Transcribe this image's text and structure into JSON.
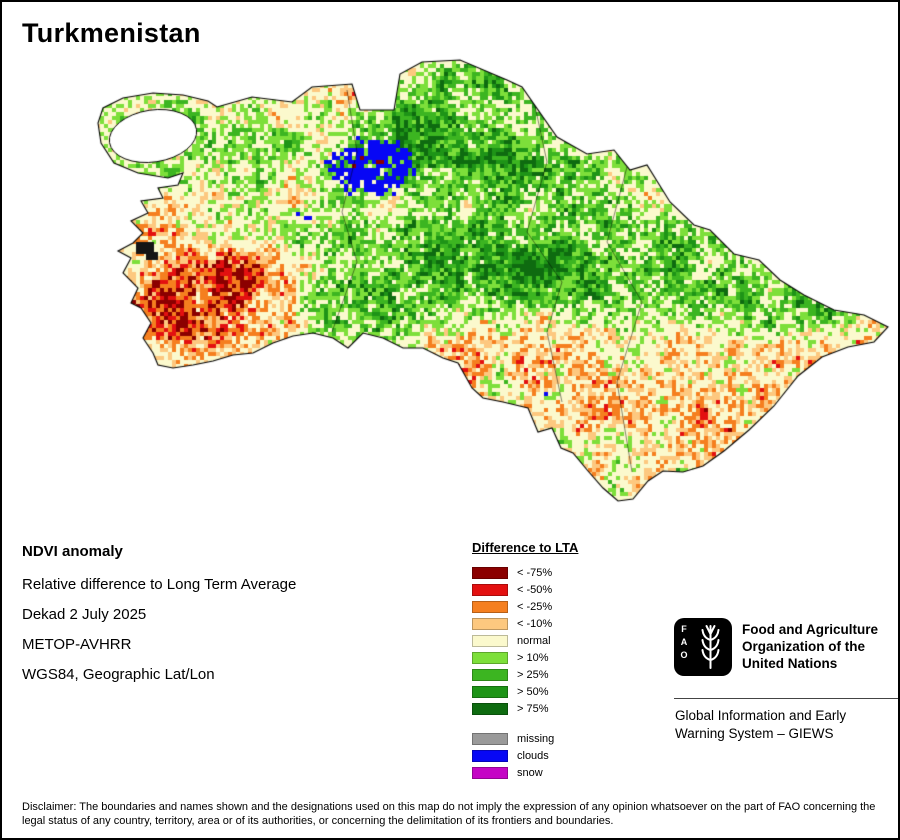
{
  "page": {
    "title": "Turkmenistan"
  },
  "info": {
    "heading": "NDVI anomaly",
    "line1": "Relative difference to Long Term Average",
    "line2": "Dekad 2 July 2025",
    "line3": "METOP-AVHRR",
    "line4": "WGS84, Geographic Lat/Lon"
  },
  "legend": {
    "title": "Difference to LTA",
    "classes": [
      {
        "label": "< -75%",
        "color": "#8b0000"
      },
      {
        "label": "< -50%",
        "color": "#e31010"
      },
      {
        "label": "< -25%",
        "color": "#f57f1f"
      },
      {
        "label": "< -10%",
        "color": "#fdc87f"
      },
      {
        "label": "normal",
        "color": "#fbf9cd"
      },
      {
        "label": "> 10%",
        "color": "#7ddf3a"
      },
      {
        "label": "> 25%",
        "color": "#3cb521"
      },
      {
        "label": "> 50%",
        "color": "#1e9417"
      },
      {
        "label": "> 75%",
        "color": "#0e6b10"
      }
    ],
    "extra": [
      {
        "label": "missing",
        "color": "#9a9a9a"
      },
      {
        "label": "clouds",
        "color": "#0707f5"
      },
      {
        "label": "snow",
        "color": "#c504c5"
      }
    ]
  },
  "branding": {
    "logo_letters": "FAO",
    "org_line1": "Food and Agriculture",
    "org_line2": "Organization of the",
    "org_line3": "United Nations",
    "giews_line1": "Global Information and Early",
    "giews_line2": "Warning System – GIEWS"
  },
  "disclaimer": "Disclaimer: The boundaries and names shown and the designations used on this map do not imply the expression of any opinion whatsoever on the part of FAO concerning the legal status of any country, territory, area or of its authorities, or concerning the delimitation of its frontiers and boundaries."
}
